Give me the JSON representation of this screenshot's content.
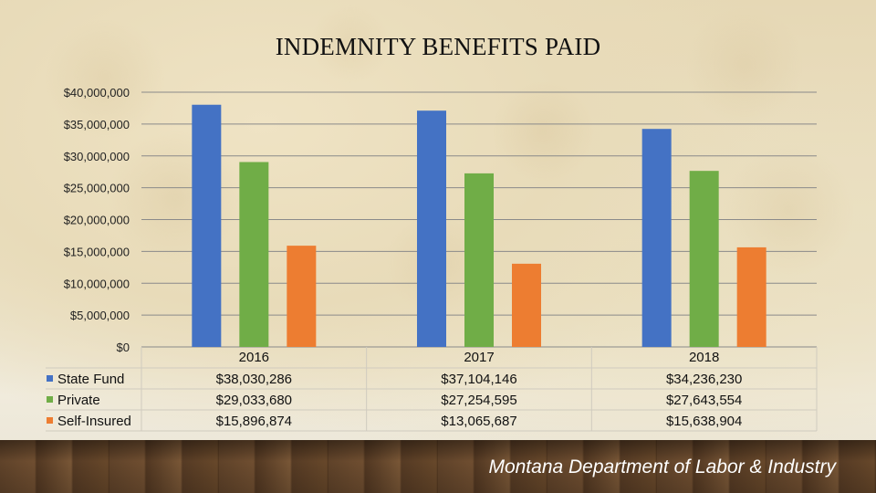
{
  "slide": {
    "footer": "Montana Department of Labor & Industry"
  },
  "chart_data": {
    "type": "bar",
    "title": "INDEMNITY BENEFITS PAID",
    "categories": [
      "2016",
      "2017",
      "2018"
    ],
    "series": [
      {
        "name": "State Fund",
        "values": [
          38030286,
          37104146,
          34236230
        ],
        "labels": [
          "$38,030,286",
          "$37,104,146",
          "$34,236,230"
        ],
        "color": "#4472c4"
      },
      {
        "name": "Private",
        "values": [
          29033680,
          27254595,
          27643554
        ],
        "labels": [
          "$29,033,680",
          "$27,254,595",
          "$27,643,554"
        ],
        "color": "#70ad47"
      },
      {
        "name": "Self-Insured",
        "values": [
          15896874,
          13065687,
          15638904
        ],
        "labels": [
          "$15,896,874",
          "$13,065,687",
          "$15,638,904"
        ],
        "color": "#ed7d31"
      }
    ],
    "ylim": [
      0,
      40000000
    ],
    "yticks": [
      {
        "value": 0,
        "label": "$0"
      },
      {
        "value": 5000000,
        "label": "$5,000,000"
      },
      {
        "value": 10000000,
        "label": "$10,000,000"
      },
      {
        "value": 15000000,
        "label": "$15,000,000"
      },
      {
        "value": 20000000,
        "label": "$20,000,000"
      },
      {
        "value": 25000000,
        "label": "$25,000,000"
      },
      {
        "value": 30000000,
        "label": "$30,000,000"
      },
      {
        "value": 35000000,
        "label": "$35,000,000"
      },
      {
        "value": 40000000,
        "label": "$40,000,000"
      }
    ],
    "grid": true,
    "legend": "data-table-left"
  }
}
